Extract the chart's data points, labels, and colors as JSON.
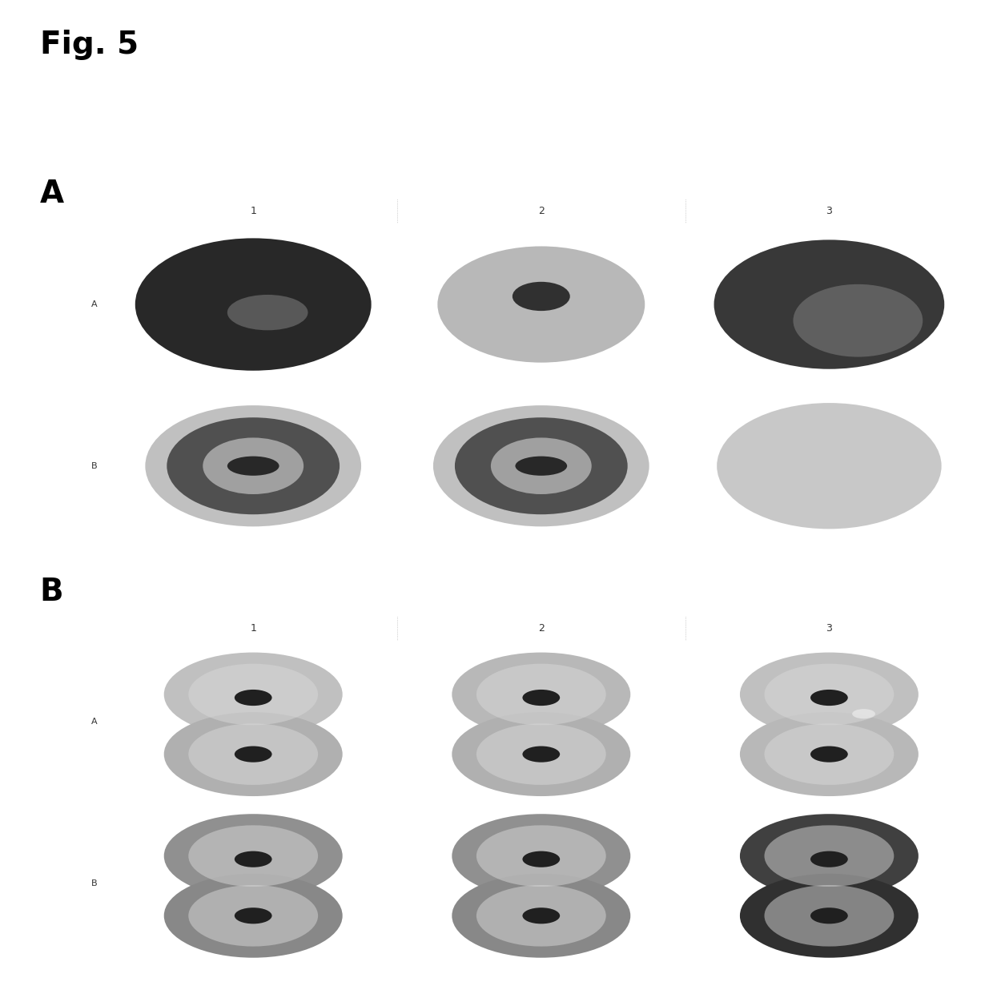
{
  "fig_label": "Fig. 5",
  "section_A_label": "A",
  "section_B_label": "B",
  "col_labels": [
    "1",
    "2",
    "3"
  ],
  "row_labels_A": [
    "A",
    "B"
  ],
  "row_labels_B": [
    "A",
    "B"
  ],
  "background_color": "#ffffff",
  "grid_bg": "#e8e8e8",
  "border_color": "#aaaaaa"
}
